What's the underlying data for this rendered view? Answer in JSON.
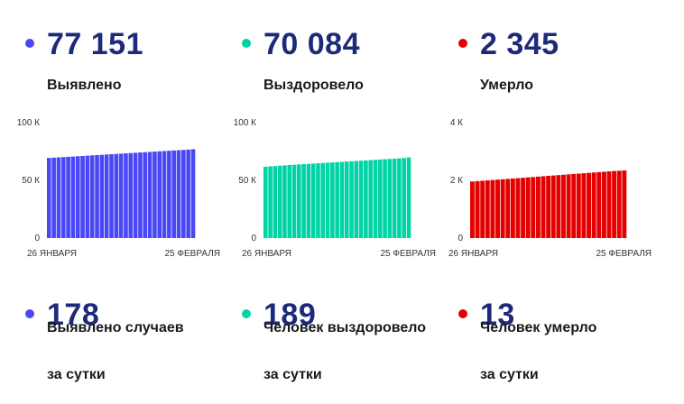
{
  "colors": {
    "detected": "#4a47f5",
    "recovered": "#00d4a6",
    "died": "#e30000",
    "headline": "#1d2a7a"
  },
  "stats": [
    {
      "value": "77 151",
      "label": "Выявлено"
    },
    {
      "value": "70 084",
      "label": "Выздоровело"
    },
    {
      "value": "2 345",
      "label": "Умерло"
    }
  ],
  "daily": [
    {
      "value": "178",
      "label_line1": "Выявлено случаев",
      "label_line2": "за сутки"
    },
    {
      "value": "189",
      "label_line1": "Человек выздоровело",
      "label_line2": "за сутки"
    },
    {
      "value": "13",
      "label_line1": "Человек умерло",
      "label_line2": "за сутки"
    }
  ],
  "chart_data": [
    {
      "type": "bar",
      "series_color": "#4a47f5",
      "x_start_label": "26 ЯНВАРЯ",
      "x_end_label": "25 ФЕВРАЛЯ",
      "y_ticks": [
        "100 К",
        "50 К",
        "0"
      ],
      "ylim": [
        0,
        100000
      ],
      "values": [
        69400,
        69650,
        69900,
        70150,
        70400,
        70650,
        70900,
        71150,
        71400,
        71650,
        71900,
        72150,
        72400,
        72650,
        72900,
        73150,
        73400,
        73650,
        73900,
        74150,
        74400,
        74650,
        74900,
        75150,
        75400,
        75650,
        75900,
        76150,
        76400,
        76650,
        76973
      ]
    },
    {
      "type": "bar",
      "series_color": "#00d4a6",
      "x_start_label": "26 ЯНВАРЯ",
      "x_end_label": "25 ФЕВРАЛЯ",
      "y_ticks": [
        "100 К",
        "50 К",
        "0"
      ],
      "ylim": [
        0,
        100000
      ],
      "values": [
        61800,
        62100,
        62400,
        62700,
        63000,
        63300,
        63550,
        63800,
        64050,
        64300,
        64550,
        64800,
        65050,
        65300,
        65550,
        65800,
        66050,
        66300,
        66550,
        66800,
        67050,
        67300,
        67550,
        67800,
        68050,
        68300,
        68550,
        68800,
        69050,
        69300,
        69895
      ]
    },
    {
      "type": "bar",
      "series_color": "#e30000",
      "x_start_label": "26 ЯНВАРЯ",
      "x_end_label": "25 ФЕВРАЛЯ",
      "y_ticks": [
        "4 К",
        "2 К",
        "0"
      ],
      "ylim": [
        0,
        4000
      ],
      "values": [
        1960,
        1973,
        1986,
        1999,
        2012,
        2025,
        2038,
        2051,
        2064,
        2077,
        2090,
        2103,
        2116,
        2129,
        2142,
        2155,
        2168,
        2181,
        2194,
        2207,
        2220,
        2233,
        2246,
        2259,
        2272,
        2285,
        2298,
        2311,
        2324,
        2332,
        2345
      ]
    }
  ]
}
